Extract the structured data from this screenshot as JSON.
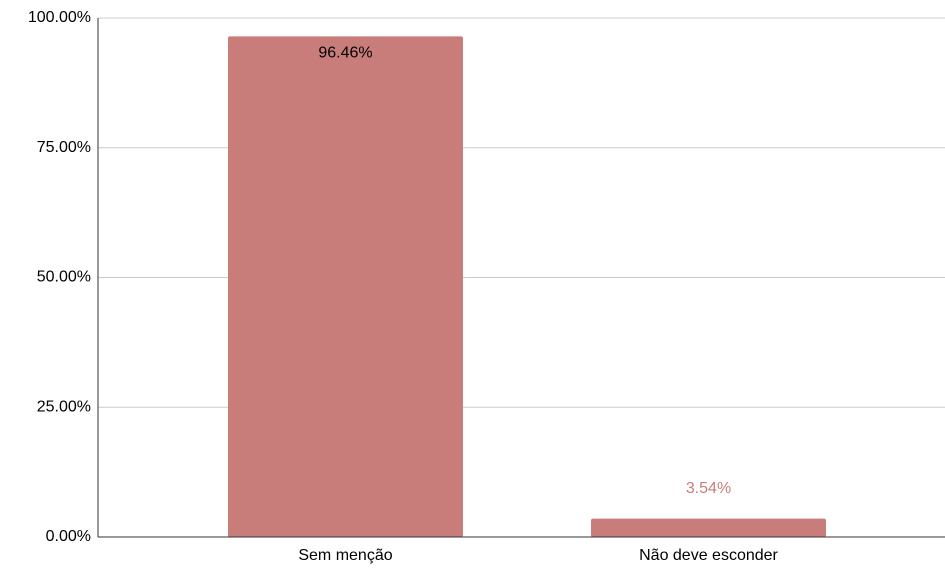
{
  "chart_data": {
    "type": "bar",
    "categories": [
      "Sem menção",
      "Não deve esconder"
    ],
    "values": [
      96.46,
      3.54
    ],
    "value_labels": [
      "96.46%",
      "3.54%"
    ],
    "color": "#c97d7b",
    "ylim": [
      0,
      100
    ],
    "yticks": [
      {
        "value": 0,
        "label": "0.00%"
      },
      {
        "value": 25,
        "label": "25.00%"
      },
      {
        "value": 50,
        "label": "50.00%"
      },
      {
        "value": 75,
        "label": "75.00%"
      },
      {
        "value": 100,
        "label": "100.00%"
      }
    ],
    "grid": true
  }
}
